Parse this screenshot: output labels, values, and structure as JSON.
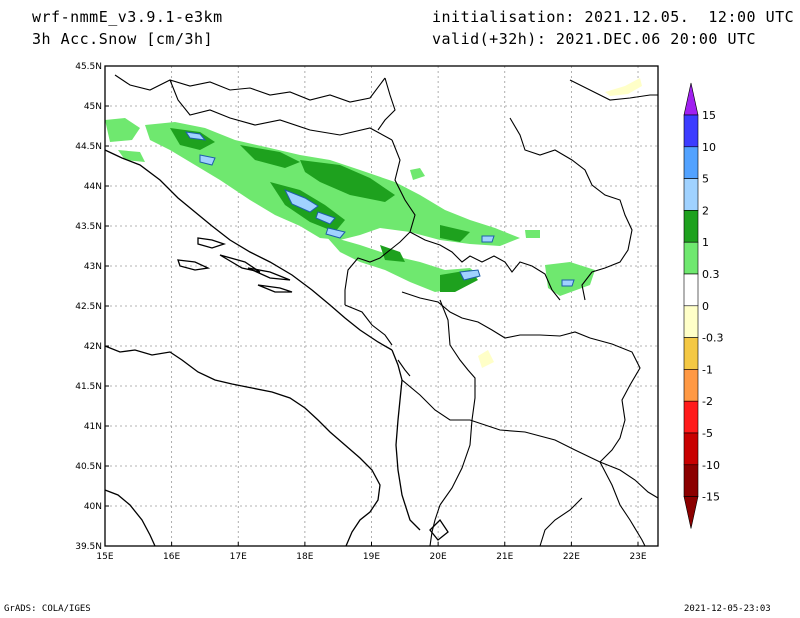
{
  "header": {
    "model": "wrf-nmmE_v3.9.1-e3km",
    "variable": "3h Acc.Snow [cm/3h]",
    "init": "initialisation: 2021.12.05.  12:00 UTC",
    "valid": "valid(+32h): 2021.DEC.06 20:00 UTC"
  },
  "map": {
    "lon_range": [
      15,
      23.3
    ],
    "lat_range": [
      39.5,
      45.5
    ],
    "lon_ticks": [
      {
        "v": 15,
        "label": "15E"
      },
      {
        "v": 16,
        "label": "16E"
      },
      {
        "v": 17,
        "label": "17E"
      },
      {
        "v": 18,
        "label": "18E"
      },
      {
        "v": 19,
        "label": "19E"
      },
      {
        "v": 20,
        "label": "20E"
      },
      {
        "v": 21,
        "label": "21E"
      },
      {
        "v": 22,
        "label": "22E"
      },
      {
        "v": 23,
        "label": "23E"
      }
    ],
    "lat_ticks": [
      {
        "v": 39.5,
        "label": "39.5N"
      },
      {
        "v": 40,
        "label": "40N"
      },
      {
        "v": 40.5,
        "label": "40.5N"
      },
      {
        "v": 41,
        "label": "41N"
      },
      {
        "v": 41.5,
        "label": "41.5N"
      },
      {
        "v": 42,
        "label": "42N"
      },
      {
        "v": 42.5,
        "label": "42.5N"
      },
      {
        "v": 43,
        "label": "43N"
      },
      {
        "v": 43.5,
        "label": "43.5N"
      },
      {
        "v": 44,
        "label": "44N"
      },
      {
        "v": 44.5,
        "label": "44.5N"
      },
      {
        "v": 45,
        "label": "45N"
      },
      {
        "v": 45.5,
        "label": "45.5N"
      }
    ],
    "grid": true
  },
  "colorbar": {
    "levels": [
      "15",
      "10",
      "5",
      "2",
      "1",
      "0.3",
      "0",
      "-0.3",
      "-1",
      "-2",
      "-5",
      "-10",
      "-15"
    ],
    "colors": [
      "#a020f0",
      "#3c3cff",
      "#52a2ff",
      "#a0d2ff",
      "#1ea11e",
      "#6fe86f",
      "#ffffff",
      "#ffffc8",
      "#f4c844",
      "#ff9944",
      "#ff1a1a",
      "#c80000",
      "#8b0000"
    ],
    "top_color": "#a020f0",
    "bottom_color": "#8b0000"
  },
  "footer": {
    "left": "GrADS: COLA/IGES",
    "right": "2021-12-05-23:03"
  }
}
